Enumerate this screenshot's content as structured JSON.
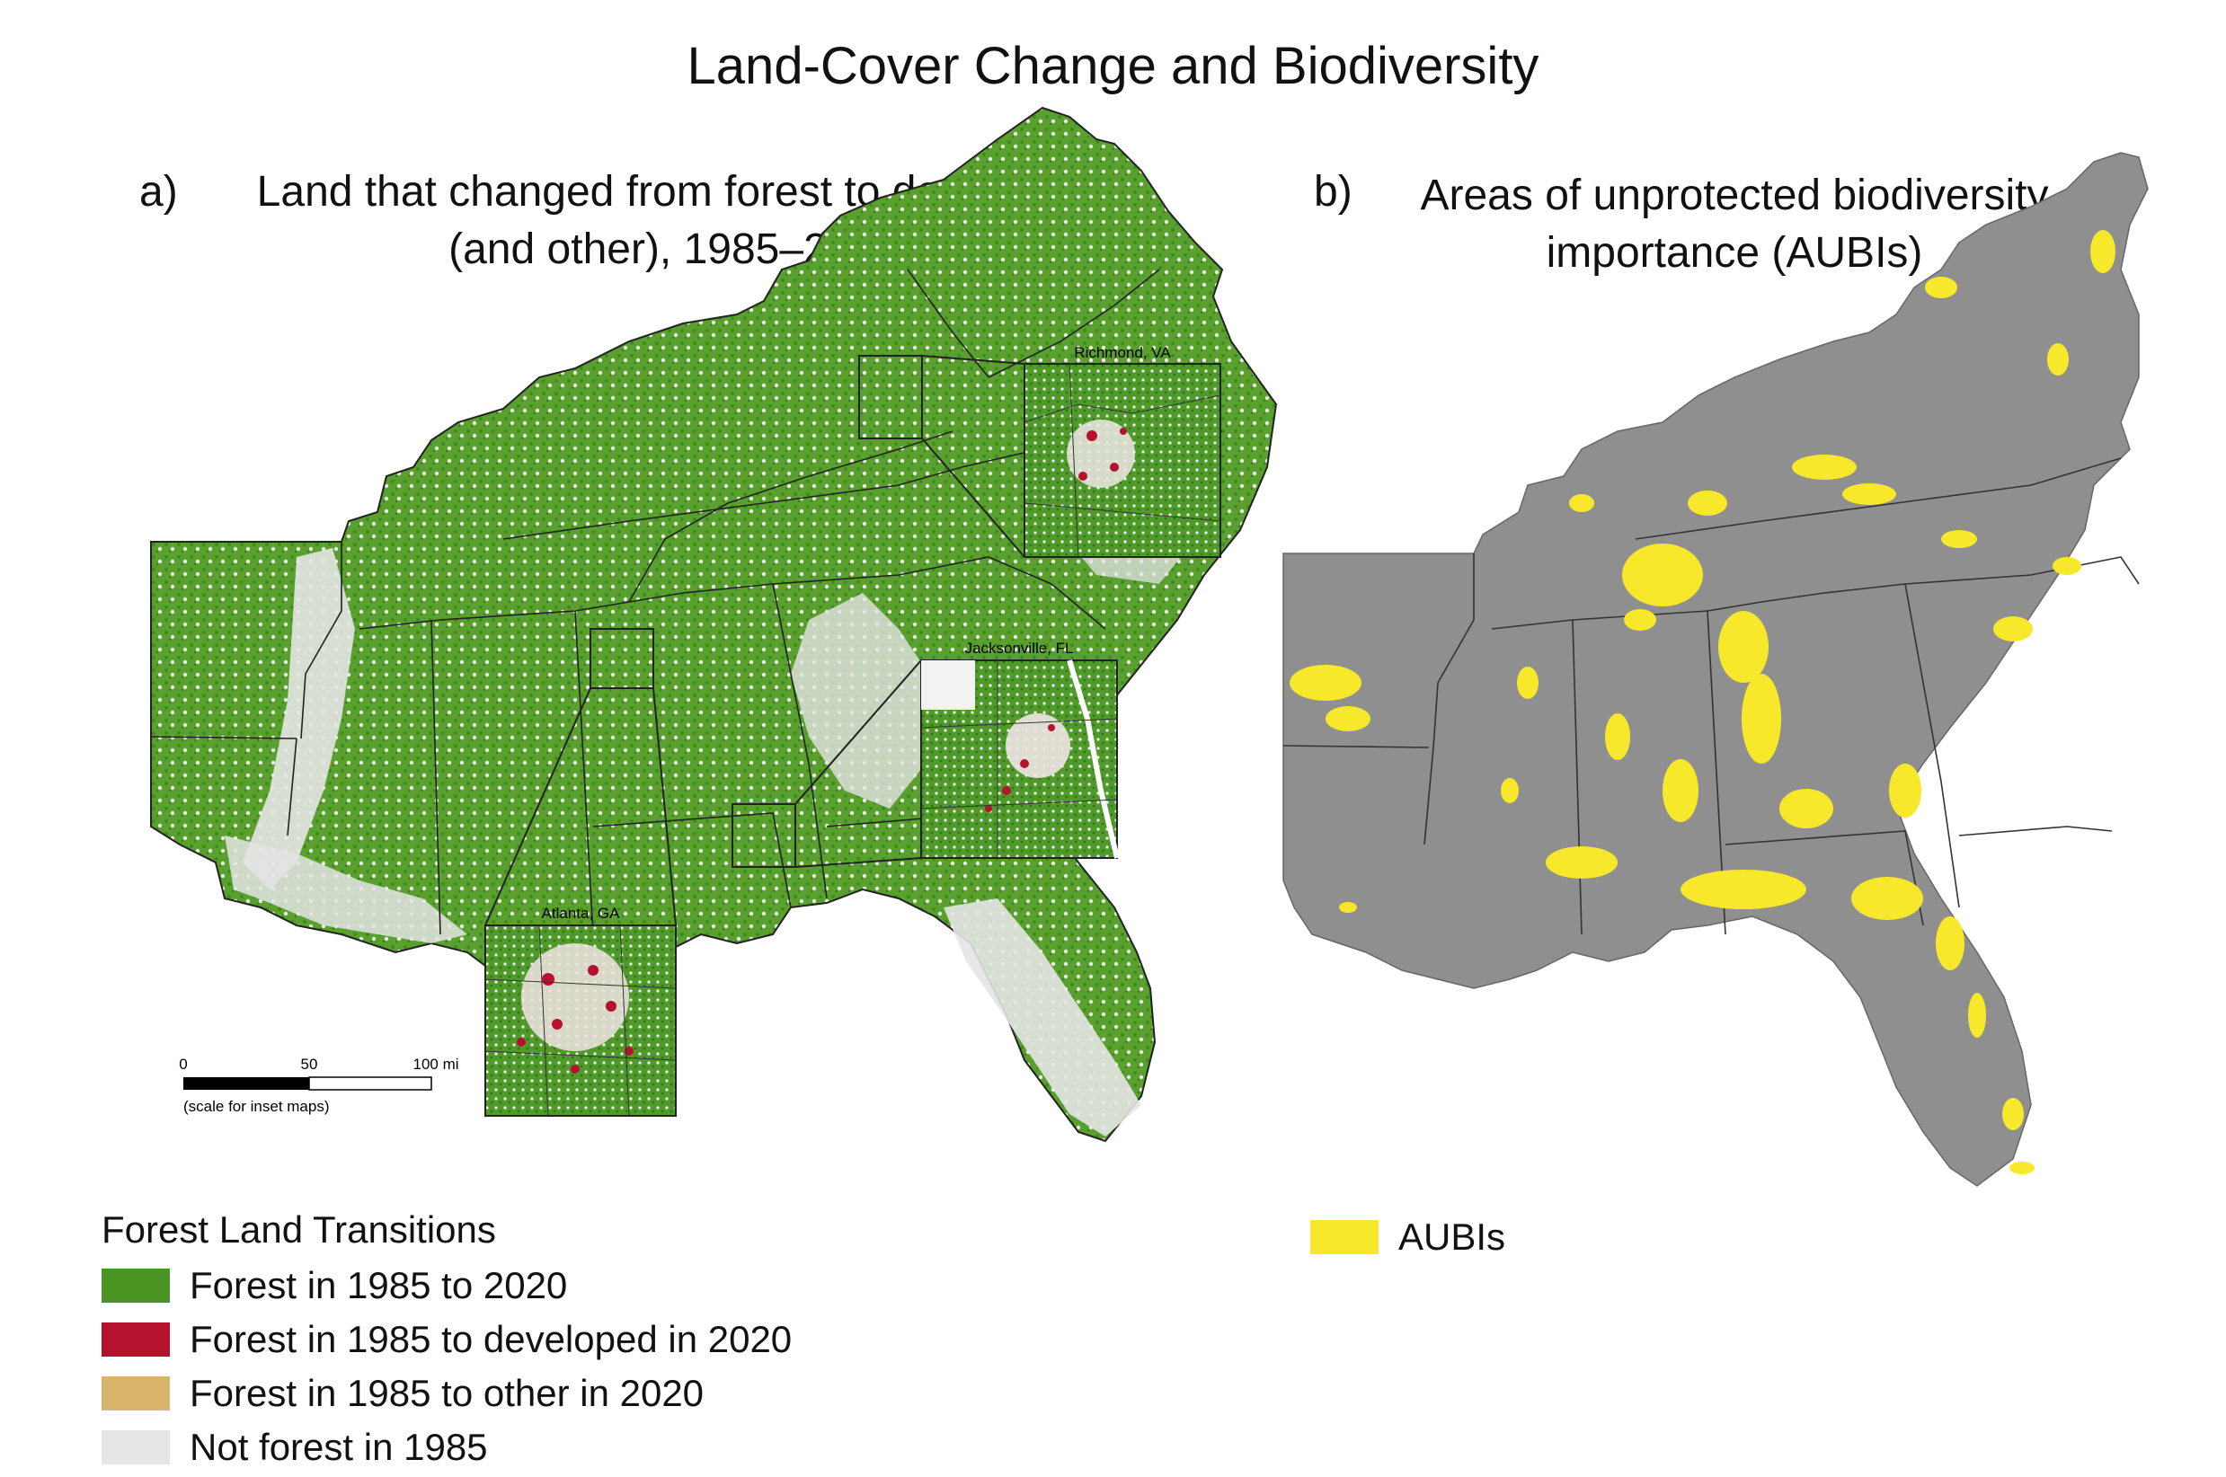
{
  "title": "Land-Cover Change and Biodiversity",
  "panel_a": {
    "letter": "a)",
    "title_line1": "Land that changed from forest to developed",
    "title_line2": "(and other), 1985–2020",
    "insets": {
      "richmond": "Richmond, VA",
      "jacksonville": "Jacksonville, FL",
      "atlanta": "Atlanta, GA"
    },
    "scale": {
      "tick0": "0",
      "tick1": "50",
      "tick2": "100 mi",
      "note": "(scale for inset maps)"
    }
  },
  "panel_b": {
    "letter": "b)",
    "title_line1": "Areas of unprotected biodiversity",
    "title_line2": "importance (AUBIs)"
  },
  "legend_a": {
    "title": "Forest Land Transitions",
    "items": [
      {
        "label": "Forest in 1985 to 2020",
        "color": "#4a9424"
      },
      {
        "label": "Forest in 1985 to developed in 2020",
        "color": "#b5122e"
      },
      {
        "label": "Forest in 1985 to other in 2020",
        "color": "#d9b46c"
      },
      {
        "label": "Not forest in 1985",
        "color": "#e6e6e6"
      }
    ]
  },
  "legend_b": {
    "items": [
      {
        "label": "AUBIs",
        "color": "#f7e82b"
      }
    ]
  },
  "colors": {
    "forest": "#4a9424",
    "developed": "#b5122e",
    "other": "#d9b46c",
    "not_forest": "#e6e6e6",
    "aubi": "#f7e82b",
    "basemap_gray": "#8f8f8f"
  }
}
